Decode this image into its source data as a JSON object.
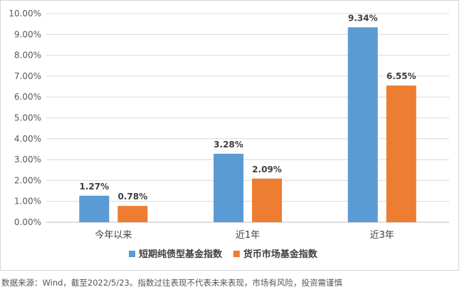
{
  "chart_data": {
    "type": "bar",
    "categories": [
      "今年以来",
      "近1年",
      "近3年"
    ],
    "series": [
      {
        "name": "短期纯债型基金指数",
        "values": [
          1.27,
          3.28,
          9.34
        ],
        "color": "#5b9bd5"
      },
      {
        "name": "货币市场基金指数",
        "values": [
          0.78,
          2.09,
          6.55
        ],
        "color": "#ed7d31"
      }
    ],
    "data_labels": [
      [
        "1.27%",
        "3.28%",
        "9.34%"
      ],
      [
        "0.78%",
        "2.09%",
        "6.55%"
      ]
    ],
    "y_ticks": [
      "0.00%",
      "1.00%",
      "2.00%",
      "3.00%",
      "4.00%",
      "5.00%",
      "6.00%",
      "7.00%",
      "8.00%",
      "9.00%",
      "10.00%"
    ],
    "ylim": [
      0,
      10
    ],
    "grid": true,
    "legend_position": "bottom",
    "grid_color": "#d9d9d9"
  },
  "footnote": "数据来源：Wind，截至2022/5/23。指数过往表现不代表未来表现，市场有风险，投资需谨慎"
}
